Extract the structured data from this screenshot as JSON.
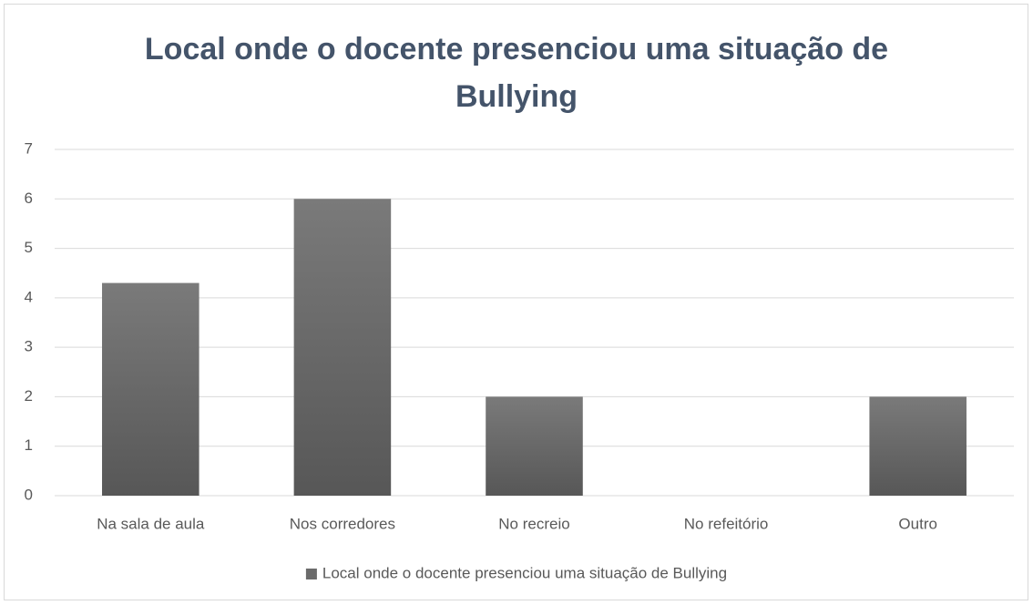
{
  "chart_data": {
    "type": "bar",
    "title": "Local onde o docente presenciou uma situação de Bullying",
    "categories": [
      "Na sala de aula",
      "Nos corredores",
      "No recreio",
      "No refeitório",
      "Outro"
    ],
    "series": [
      {
        "name": "Local onde o docente presenciou uma situação de Bullying",
        "color": "#6b6b6b",
        "values": [
          4.3,
          6,
          2,
          0,
          2
        ]
      }
    ],
    "ylim": [
      0,
      7
    ],
    "yticks": [
      0,
      1,
      2,
      3,
      4,
      5,
      6,
      7
    ],
    "grid": true,
    "legend": "bottom"
  }
}
